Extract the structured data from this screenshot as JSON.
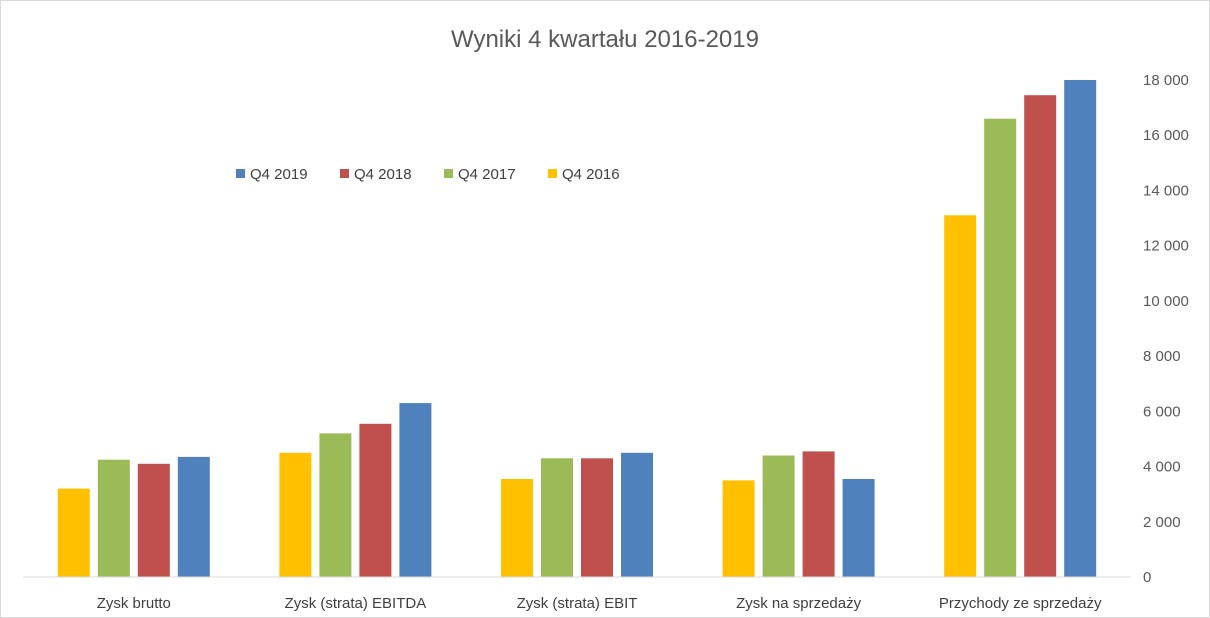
{
  "chart_data": {
    "type": "bar",
    "title": "Wyniki 4 kwartału 2016-2019",
    "categories": [
      "Zysk brutto",
      "Zysk (strata) EBITDA",
      "Zysk (strata) EBIT",
      "Zysk na sprzedaży",
      "Przychody ze sprzedaży"
    ],
    "series": [
      {
        "name": "Q4 2016",
        "color": "#ffc000",
        "values": [
          3200,
          4500,
          3550,
          3500,
          13100
        ]
      },
      {
        "name": "Q4 2017",
        "color": "#9bbb59",
        "values": [
          4250,
          5200,
          4300,
          4400,
          16600
        ]
      },
      {
        "name": "Q4 2018",
        "color": "#c0504d",
        "values": [
          4100,
          5550,
          4300,
          4550,
          17450
        ]
      },
      {
        "name": "Q4 2019",
        "color": "#4f81bd",
        "values": [
          4350,
          6300,
          4500,
          3550,
          18000
        ]
      }
    ],
    "legend": [
      "Q4 2019",
      "Q4 2018",
      "Q4 2017",
      "Q4 2016"
    ],
    "legend_position": "top-left inside plot",
    "y_axis_position": "right",
    "ylim": [
      0,
      18000
    ],
    "yticks": [
      0,
      2000,
      4000,
      6000,
      8000,
      10000,
      12000,
      14000,
      16000,
      18000
    ],
    "ytick_labels": [
      "0",
      "2 000",
      "4 000",
      "6 000",
      "8 000",
      "10 000",
      "12 000",
      "14 000",
      "16 000",
      "18 000"
    ],
    "xlabel": "",
    "ylabel": "",
    "grid": false
  }
}
